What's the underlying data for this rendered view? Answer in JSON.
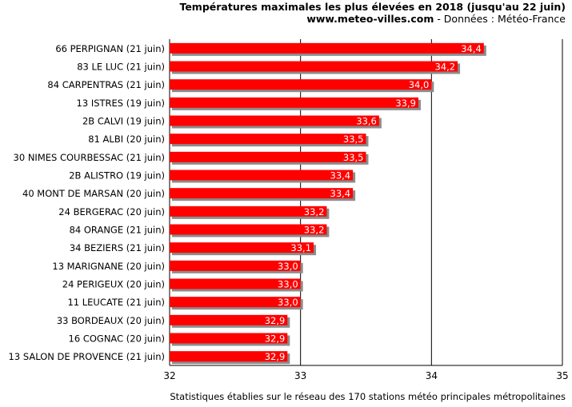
{
  "header": {
    "title": "Températures maximales les plus élevées en 2018 (jusqu'au 22 juin)",
    "site": "www.meteo-villes.com",
    "source": " - Données : Météo-France"
  },
  "footer": {
    "note": "Statistiques établies sur le réseau des 170 stations météo principales métropolitaines"
  },
  "colors": {
    "bar": "#ff0000",
    "shadow": "#8c8c8c",
    "grid": "#000000",
    "value_label": "#ffffff"
  },
  "chart_data": {
    "type": "bar",
    "orientation": "horizontal",
    "title": "Températures maximales les plus élevées en 2018 (jusqu'au 22 juin)",
    "xlim": [
      32,
      35
    ],
    "xticks": [
      "32",
      "33",
      "34",
      "35"
    ],
    "grid": "vertical",
    "categories": [
      "66 PERPIGNAN (21 juin)",
      "83 LE LUC (21 juin)",
      "84 CARPENTRAS (21 juin)",
      "13 ISTRES (19 juin)",
      "2B CALVI (19 juin)",
      "81 ALBI (20 juin)",
      "30 NIMES COURBESSAC (21 juin)",
      "2B ALISTRO (19 juin)",
      "40 MONT DE MARSAN (20 juin)",
      "24 BERGERAC (20 juin)",
      "84 ORANGE (21 juin)",
      "34 BEZIERS (21 juin)",
      "13 MARIGNANE (20 juin)",
      "24 PERIGEUX (20 juin)",
      "11 LEUCATE (21 juin)",
      "33 BORDEAUX (20 juin)",
      "16 COGNAC (20 juin)",
      "13 SALON DE PROVENCE (21 juin)"
    ],
    "values": [
      34.4,
      34.2,
      34.0,
      33.9,
      33.6,
      33.5,
      33.5,
      33.4,
      33.4,
      33.2,
      33.2,
      33.1,
      33.0,
      33.0,
      33.0,
      32.9,
      32.9,
      32.9
    ],
    "value_labels": [
      "34,4",
      "34,2",
      "34,0",
      "33,9",
      "33,6",
      "33,5",
      "33,5",
      "33,4",
      "33,4",
      "33,2",
      "33,2",
      "33,1",
      "33,0",
      "33,0",
      "33,0",
      "32,9",
      "32,9",
      "32,9"
    ]
  }
}
